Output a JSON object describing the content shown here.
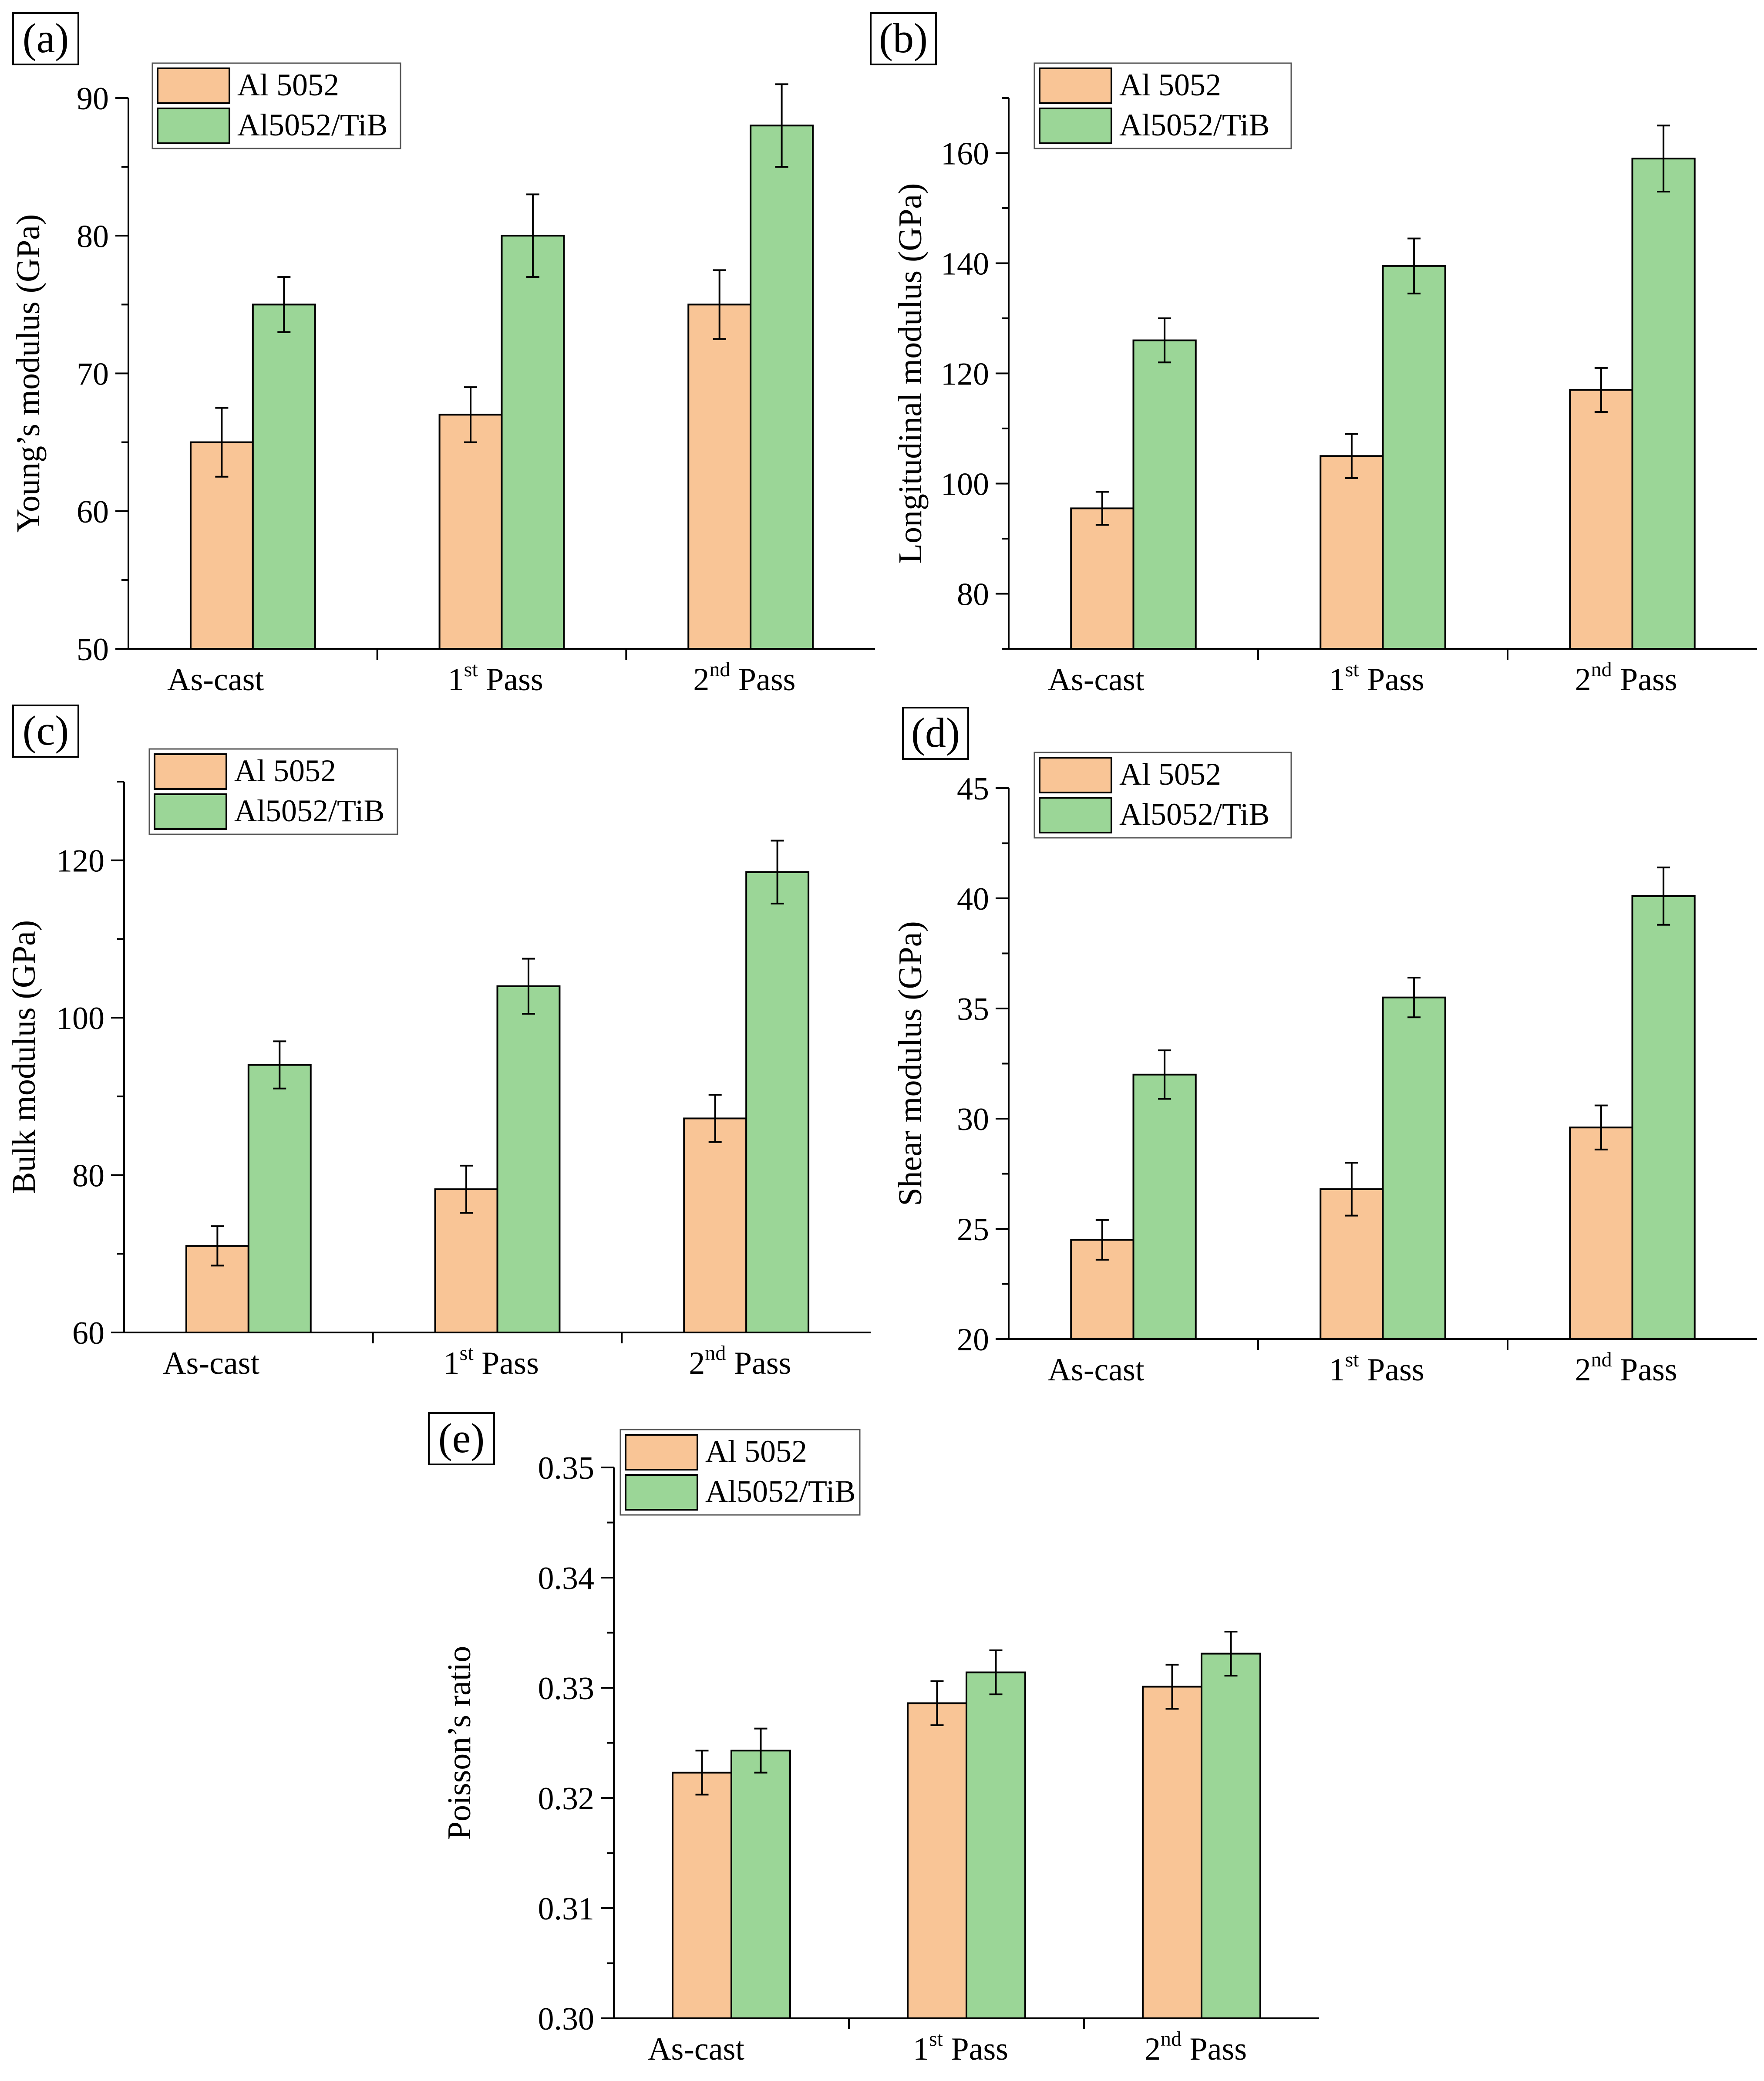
{
  "colors": {
    "al5052": "#f9c596",
    "al5052_tib": "#9bd697",
    "axis": "#000000"
  },
  "chart_data": [
    {
      "id": "a",
      "type": "bar",
      "panel_label": "(a)",
      "ylabel": "Young’s modulus (GPa)",
      "ylim": [
        50,
        90
      ],
      "yticks": [
        "50",
        "60",
        "70",
        "80",
        "90"
      ],
      "categories": [
        {
          "text": "As-cast",
          "sup": "",
          "suffix": ""
        },
        {
          "text": "1",
          "sup": "st",
          "suffix": " Pass"
        },
        {
          "text": "2",
          "sup": "nd",
          "suffix": " Pass"
        }
      ],
      "series": [
        {
          "name": "Al 5052",
          "values": [
            65,
            67,
            75
          ],
          "errors": [
            2.5,
            2.0,
            2.5
          ]
        },
        {
          "name": "Al5052/TiB",
          "values": [
            75,
            80,
            88
          ],
          "errors": [
            2.0,
            3.0,
            3.0
          ]
        }
      ]
    },
    {
      "id": "b",
      "type": "bar",
      "panel_label": "(b)",
      "ylabel": "Longitudinal modulus (GPa)",
      "ylim": [
        70,
        170
      ],
      "yticks": [
        "80",
        "100",
        "120",
        "140",
        "160"
      ],
      "categories": [
        {
          "text": "As-cast",
          "sup": "",
          "suffix": ""
        },
        {
          "text": "1",
          "sup": "st",
          "suffix": " Pass"
        },
        {
          "text": "2",
          "sup": "nd",
          "suffix": " Pass"
        }
      ],
      "series": [
        {
          "name": "Al 5052",
          "values": [
            95.5,
            105,
            117
          ],
          "errors": [
            3.0,
            4.0,
            4.0
          ]
        },
        {
          "name": "Al5052/TiB",
          "values": [
            126,
            139.5,
            159
          ],
          "errors": [
            4.0,
            5.0,
            6.0
          ]
        }
      ]
    },
    {
      "id": "c",
      "type": "bar",
      "panel_label": "(c)",
      "ylabel": "Bulk modulus (GPa)",
      "ylim": [
        60,
        130
      ],
      "yticks": [
        "60",
        "80",
        "100",
        "120"
      ],
      "categories": [
        {
          "text": "As-cast",
          "sup": "",
          "suffix": ""
        },
        {
          "text": "1",
          "sup": "st",
          "suffix": " Pass"
        },
        {
          "text": "2",
          "sup": "nd",
          "suffix": " Pass"
        }
      ],
      "series": [
        {
          "name": "Al 5052",
          "values": [
            71,
            78.2,
            87.2
          ],
          "errors": [
            2.5,
            3.0,
            3.0
          ]
        },
        {
          "name": "Al5052/TiB",
          "values": [
            94,
            104,
            118.5
          ],
          "errors": [
            3.0,
            3.5,
            4.0
          ]
        }
      ]
    },
    {
      "id": "d",
      "type": "bar",
      "panel_label": "(d)",
      "ylabel": "Shear modulus (GPa)",
      "ylim": [
        20,
        45
      ],
      "yticks": [
        "20",
        "25",
        "30",
        "35",
        "40",
        "45"
      ],
      "categories": [
        {
          "text": "As-cast",
          "sup": "",
          "suffix": ""
        },
        {
          "text": "1",
          "sup": "st",
          "suffix": " Pass"
        },
        {
          "text": "2",
          "sup": "nd",
          "suffix": " Pass"
        }
      ],
      "series": [
        {
          "name": "Al 5052",
          "values": [
            24.5,
            26.8,
            29.6
          ],
          "errors": [
            0.9,
            1.2,
            1.0
          ]
        },
        {
          "name": "Al5052/TiB",
          "values": [
            32,
            35.5,
            40.1
          ],
          "errors": [
            1.1,
            0.9,
            1.3
          ]
        }
      ]
    },
    {
      "id": "e",
      "type": "bar",
      "panel_label": "(e)",
      "ylabel": "Poisson’s ratio",
      "ylim": [
        0.3,
        0.35
      ],
      "yticks": [
        "0.30",
        "0.31",
        "0.32",
        "0.33",
        "0.34",
        "0.35"
      ],
      "categories": [
        {
          "text": "As-cast",
          "sup": "",
          "suffix": ""
        },
        {
          "text": "1",
          "sup": "st",
          "suffix": " Pass"
        },
        {
          "text": "2",
          "sup": "nd",
          "suffix": " Pass"
        }
      ],
      "series": [
        {
          "name": "Al 5052",
          "values": [
            0.3223,
            0.3286,
            0.3301
          ],
          "errors": [
            0.002,
            0.002,
            0.002
          ]
        },
        {
          "name": "Al5052/TiB",
          "values": [
            0.3243,
            0.3314,
            0.3331
          ],
          "errors": [
            0.002,
            0.002,
            0.002
          ]
        }
      ]
    }
  ]
}
